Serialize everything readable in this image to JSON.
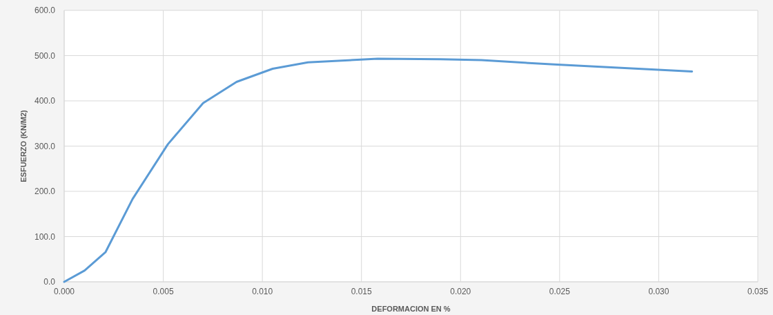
{
  "chart_data": {
    "type": "line",
    "xlabel": "DEFORMACION EN %",
    "ylabel": "ESFUERZO (KN/M2)",
    "x": [
      0,
      0.00103,
      0.00209,
      0.00345,
      0.00523,
      0.00701,
      0.0087,
      0.01052,
      0.0123,
      0.01582,
      0.01899,
      0.02106,
      0.02488,
      0.03168
    ],
    "series": [
      {
        "color": "#5b9bd5",
        "values": [
          0,
          25,
          66,
          183,
          304,
          395,
          442,
          471,
          485,
          493,
          492,
          490,
          480,
          465
        ]
      }
    ],
    "xlim": [
      0,
      0.035
    ],
    "xticks": [
      {
        "value": 0,
        "label": "0.000"
      },
      {
        "value": 0.005,
        "label": "0.005"
      },
      {
        "value": 0.01,
        "label": "0.010"
      },
      {
        "value": 0.015,
        "label": "0.015"
      },
      {
        "value": 0.02,
        "label": "0.020"
      },
      {
        "value": 0.025,
        "label": "0.025"
      },
      {
        "value": 0.03,
        "label": "0.030"
      },
      {
        "value": 0.035,
        "label": "0.035"
      }
    ],
    "ylim": [
      0,
      600
    ],
    "yticks": [
      {
        "value": 0,
        "label": "0.0"
      },
      {
        "value": 100,
        "label": "100.0"
      },
      {
        "value": 200,
        "label": "200.0"
      },
      {
        "value": 300,
        "label": "300.0"
      },
      {
        "value": 400,
        "label": "400.0"
      },
      {
        "value": 500,
        "label": "500.0"
      },
      {
        "value": 600,
        "label": "600.0"
      }
    ],
    "grid": true,
    "marker": "none",
    "line_style": "solid"
  }
}
